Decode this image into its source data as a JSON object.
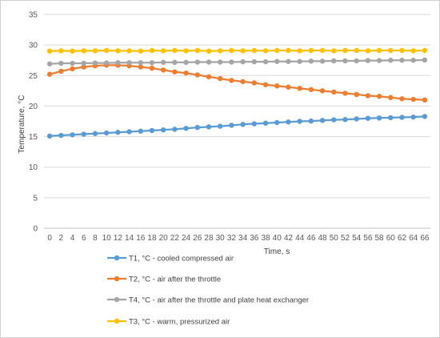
{
  "chart_data": {
    "type": "line",
    "xlabel": "Time, s",
    "ylabel": "Temperature, °C",
    "x": [
      0,
      2,
      4,
      6,
      8,
      10,
      12,
      14,
      16,
      18,
      20,
      22,
      24,
      26,
      28,
      30,
      32,
      34,
      36,
      38,
      40,
      42,
      44,
      46,
      48,
      50,
      52,
      54,
      56,
      58,
      60,
      62,
      64,
      66
    ],
    "ylim": [
      0,
      35
    ],
    "yticks": [
      0,
      5,
      10,
      15,
      20,
      25,
      30,
      35
    ],
    "grid": true,
    "legend_position": "bottom",
    "series": [
      {
        "name": "T1, °C - cooled compressed air",
        "color": "#5B9BD5",
        "values": [
          15.1,
          15.2,
          15.3,
          15.4,
          15.5,
          15.6,
          15.7,
          15.8,
          15.9,
          16.0,
          16.1,
          16.2,
          16.35,
          16.5,
          16.6,
          16.7,
          16.85,
          17.0,
          17.1,
          17.2,
          17.3,
          17.4,
          17.5,
          17.55,
          17.65,
          17.75,
          17.8,
          17.9,
          18.0,
          18.05,
          18.1,
          18.15,
          18.2,
          18.3
        ]
      },
      {
        "name": "T2, °C - air after the throttle",
        "color": "#ED7D31",
        "values": [
          25.2,
          25.7,
          26.1,
          26.4,
          26.6,
          26.7,
          26.7,
          26.6,
          26.4,
          26.2,
          25.9,
          25.6,
          25.4,
          25.1,
          24.8,
          24.5,
          24.2,
          24.0,
          23.8,
          23.5,
          23.3,
          23.1,
          22.9,
          22.7,
          22.5,
          22.3,
          22.1,
          21.9,
          21.7,
          21.6,
          21.4,
          21.2,
          21.1,
          21.0
        ]
      },
      {
        "name": "T4, °C - air after the throttle and plate heat exchanger",
        "color": "#A5A5A5",
        "values": [
          26.9,
          27.0,
          27.0,
          27.0,
          27.05,
          27.05,
          27.1,
          27.1,
          27.1,
          27.1,
          27.15,
          27.15,
          27.15,
          27.2,
          27.2,
          27.2,
          27.2,
          27.25,
          27.25,
          27.25,
          27.3,
          27.3,
          27.3,
          27.35,
          27.35,
          27.4,
          27.4,
          27.4,
          27.45,
          27.45,
          27.5,
          27.5,
          27.5,
          27.55
        ]
      },
      {
        "name": "T3, °C - warm, pressurized air",
        "color": "#FFC000",
        "values": [
          29.0,
          29.05,
          29.0,
          29.05,
          29.05,
          29.1,
          29.05,
          29.05,
          29.0,
          29.1,
          29.05,
          29.1,
          29.05,
          29.1,
          29.0,
          29.05,
          29.1,
          29.05,
          29.1,
          29.05,
          29.1,
          29.1,
          29.05,
          29.1,
          29.1,
          29.05,
          29.1,
          29.1,
          29.05,
          29.1,
          29.1,
          29.1,
          29.05,
          29.1
        ]
      }
    ]
  }
}
